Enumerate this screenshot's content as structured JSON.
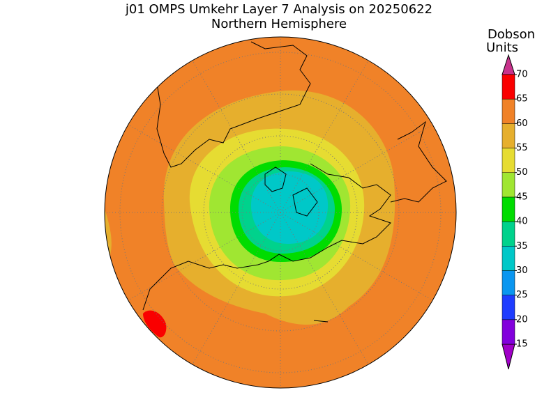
{
  "map": {
    "title": "j01 OMPS Umkehr Layer 7 Analysis on 20250622",
    "subtitle": "Northern Hemisphere",
    "colorbar": {
      "label_lines": [
        "Dobson",
        "Units"
      ],
      "ticks": [
        15,
        20,
        25,
        30,
        35,
        40,
        45,
        50,
        55,
        60,
        65,
        70
      ],
      "band_colors": [
        "#8200dc",
        "#1e3cff",
        "#0a96f0",
        "#00c8c8",
        "#00d28c",
        "#00dc00",
        "#a0e632",
        "#e6dc32",
        "#e6af2d",
        "#f08228",
        "#fa0000"
      ],
      "under_color": "#a000c8",
      "over_color": "#c8328c"
    }
  }
}
